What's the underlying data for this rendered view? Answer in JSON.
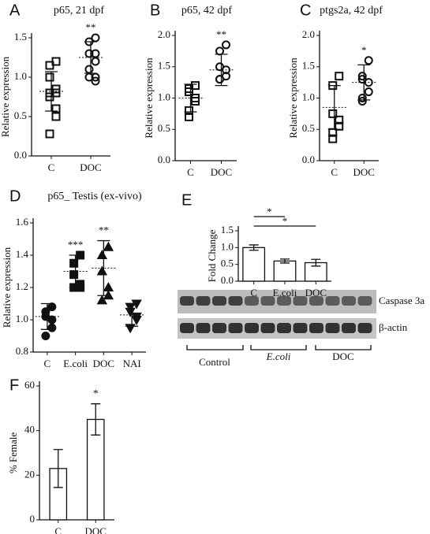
{
  "chart_data": [
    {
      "type": "dot",
      "panel": "A",
      "title": "p65, 21 dpf",
      "ylabel": "Relative expression",
      "categories": [
        "C",
        "DOC"
      ],
      "points": [
        [
          1.2,
          1.15,
          1.0,
          0.85,
          0.8,
          0.8,
          0.75,
          0.6,
          0.5,
          0.28
        ],
        [
          1.5,
          1.45,
          1.3,
          1.3,
          1.2,
          1.1,
          1.0,
          1.0,
          0.95
        ]
      ],
      "means": [
        0.82,
        1.25
      ],
      "errors": [
        0.25,
        0.2
      ],
      "markers": [
        "square",
        "circle"
      ],
      "filled": false,
      "ylim": [
        0,
        1.5
      ],
      "yticks": [
        {
          "value": 0,
          "label": "0.0"
        },
        0.5,
        {
          "value": 1,
          "label": "1.0"
        },
        1.5
      ],
      "annotations": [
        {
          "category": "DOC",
          "text": "**"
        }
      ]
    },
    {
      "type": "dot",
      "panel": "B",
      "title": "p65, 42 dpf",
      "ylabel": "Relative expression",
      "categories": [
        "C",
        "DOC"
      ],
      "points": [
        [
          1.2,
          1.15,
          1.1,
          1.0,
          0.95,
          0.8,
          0.7
        ],
        [
          1.85,
          1.75,
          1.5,
          1.45,
          1.35,
          1.3,
          1.3
        ]
      ],
      "means": [
        1.0,
        1.45
      ],
      "errors": [
        0.22,
        0.25
      ],
      "markers": [
        "square",
        "circle"
      ],
      "filled": false,
      "ylim": [
        0,
        2
      ],
      "yticks": [
        {
          "value": 0,
          "label": "0.0"
        },
        0.5,
        {
          "value": 1,
          "label": "1.0"
        },
        1.5,
        {
          "value": 2,
          "label": "2.0"
        }
      ],
      "annotations": [
        {
          "category": "DOC",
          "text": "**"
        }
      ]
    },
    {
      "type": "dot",
      "panel": "C",
      "title": "ptgs2a, 42 dpf",
      "ylabel": "Relative expression",
      "categories": [
        "C",
        "DOC"
      ],
      "points": [
        [
          1.35,
          1.2,
          0.75,
          0.65,
          0.55,
          0.45,
          0.35
        ],
        [
          1.6,
          1.35,
          1.3,
          1.25,
          1.1,
          1.0,
          0.95
        ]
      ],
      "means": [
        0.85,
        1.25
      ],
      "errors": [
        0.35,
        0.28
      ],
      "markers": [
        "square",
        "circle"
      ],
      "filled": false,
      "ylim": [
        0,
        2
      ],
      "yticks": [
        {
          "value": 0,
          "label": "0.0"
        },
        0.5,
        {
          "value": 1,
          "label": "1.0"
        },
        1.5,
        {
          "value": 2,
          "label": "2.0"
        }
      ],
      "annotations": [
        {
          "category": "DOC",
          "text": "*"
        }
      ]
    },
    {
      "type": "dot",
      "panel": "D",
      "title": "p65_ Testis (ex-vivo)",
      "ylabel": "Relative expression",
      "categories": [
        "C",
        "E.coli",
        "DOC",
        "NAI"
      ],
      "points": [
        [
          1.08,
          1.05,
          1.02,
          1.0,
          0.95,
          0.9
        ],
        [
          1.4,
          1.35,
          1.28,
          1.22,
          1.2,
          1.2
        ],
        [
          1.45,
          1.4,
          1.3,
          1.2,
          1.15,
          1.12
        ],
        [
          1.1,
          1.08,
          1.05,
          1.02,
          1.0,
          0.95
        ]
      ],
      "means": [
        1.02,
        1.3,
        1.32,
        1.03
      ],
      "errors": [
        0.08,
        0.1,
        0.17,
        0.07
      ],
      "markers": [
        "circle",
        "square",
        "triangle",
        "triangle-down"
      ],
      "filled": true,
      "ylim": [
        0.8,
        1.6
      ],
      "yticks": [
        0.8,
        {
          "value": 1,
          "label": "1.0"
        },
        1.2,
        1.4,
        1.6
      ],
      "annotations": [
        {
          "category": "E.coli",
          "text": "***"
        },
        {
          "category": "DOC",
          "text": "**"
        }
      ]
    },
    {
      "type": "bar",
      "panel": "E",
      "ylabel": "Fold Change",
      "categories": [
        "C",
        "E.coli",
        "DOC"
      ],
      "values": [
        1.0,
        0.6,
        0.55
      ],
      "errors": [
        0.08,
        0.06,
        0.1
      ],
      "ylim": [
        0,
        1.5
      ],
      "yticks": [
        {
          "value": 0,
          "label": "0.0"
        },
        0.5,
        {
          "value": 1,
          "label": "1.0"
        },
        1.5
      ],
      "brackets": [
        {
          "from": "C",
          "to": "E.coli",
          "text": "*"
        },
        {
          "from": "C",
          "to": "DOC",
          "text": "*"
        }
      ]
    },
    {
      "type": "bar",
      "panel": "F",
      "ylabel": "% Female",
      "categories": [
        "C",
        "DOC"
      ],
      "values": [
        23,
        45
      ],
      "errors": [
        8.5,
        7
      ],
      "ylim": [
        0,
        60
      ],
      "yticks": [
        0,
        20,
        40,
        60
      ],
      "annotations": [
        {
          "category": "DOC",
          "text": "*"
        }
      ]
    }
  ],
  "blot": {
    "rows": [
      "Caspase 3a",
      "β-actin"
    ],
    "groups": [
      "Control",
      "E.coli",
      "DOC"
    ]
  }
}
